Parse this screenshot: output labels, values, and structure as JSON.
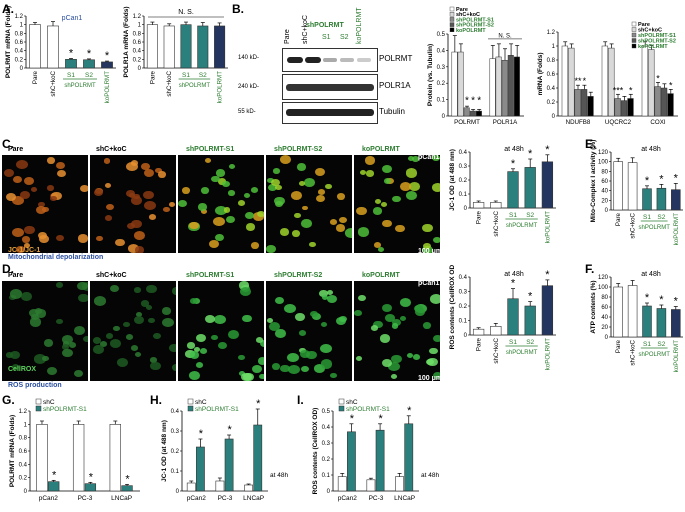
{
  "colors": {
    "white": "#ffffff",
    "teal": "#2b7f7c",
    "navy": "#24365f",
    "grey": "#8a8a8a",
    "black": "#000000",
    "green": "#2e7d32",
    "blue": "#2b4fa0",
    "lightgrey": "#d9d9d9"
  },
  "letters": {
    "A": "A.",
    "B": "B.",
    "C": "C.",
    "D": "D.",
    "E": "E.",
    "F": "F.",
    "G": "G.",
    "H": "H.",
    "I": "I."
  },
  "panelA": {
    "left": {
      "ylabel": "POLRMT mRNA (Folds)",
      "note": "pCan1",
      "yticks": [
        "0",
        "0.2",
        "0.4",
        "0.6",
        "0.8",
        "1",
        "1.2"
      ],
      "ylim": [
        0,
        1.2
      ],
      "categories": [
        "Pare",
        "shC+koC",
        "S1",
        "S2",
        "koPOLRMT"
      ],
      "values": [
        1.0,
        0.97,
        0.2,
        0.19,
        0.14
      ],
      "errors": [
        0.05,
        0.1,
        0.02,
        0.02,
        0.02
      ],
      "stars": [
        "",
        "",
        "*",
        "*",
        "*"
      ],
      "group": "shPOLRMT"
    },
    "right": {
      "ylabel": "POLR1A mRNA (Folds)",
      "note": "N. S.",
      "yticks": [
        "0",
        "0.2",
        "0.4",
        "0.6",
        "0.8",
        "1",
        "1.2"
      ],
      "ylim": [
        0,
        1.2
      ],
      "categories": [
        "Pare",
        "shC+koC",
        "S1",
        "S2",
        "koPOLRMT"
      ],
      "values": [
        1.0,
        0.97,
        1.0,
        0.97,
        0.97
      ],
      "errors": [
        0.06,
        0.05,
        0.06,
        0.08,
        0.07
      ],
      "group": "shPOLRMT"
    }
  },
  "panelB": {
    "lanes": [
      "Pare",
      "shC+koC",
      "S1",
      "S2",
      "koPOLRMT"
    ],
    "group": "shPOLRMT",
    "markers": [
      "140 kD-",
      "240 kD-",
      "55 kD-"
    ],
    "proteins": [
      "POLRMT",
      "POLR1A",
      "Tubulin"
    ],
    "protein_chart": {
      "ylabel": "Protein (vs. Tubulin)",
      "yticks": [
        "0",
        "0.1",
        "0.2",
        "0.3",
        "0.4",
        "0.5"
      ],
      "ylim": [
        0,
        0.5
      ],
      "categories": [
        "POLRMT",
        "POLR1A"
      ],
      "series": [
        {
          "name": "Pare",
          "values": [
            0.39,
            0.35
          ]
        },
        {
          "name": "shC+koC",
          "values": [
            0.39,
            0.36
          ]
        },
        {
          "name": "shPOLRMT-S1",
          "values": [
            0.05,
            0.34
          ]
        },
        {
          "name": "shPOLRMT-S2",
          "values": [
            0.03,
            0.37
          ]
        },
        {
          "name": "koPOLRMT",
          "values": [
            0.03,
            0.36
          ]
        }
      ],
      "errors": [
        [
          0.1,
          0.05,
          0.01,
          0.01,
          0.01
        ],
        [
          0.08,
          0.08,
          0.07,
          0.07,
          0.07
        ]
      ],
      "stars": [
        "*",
        "*",
        "*"
      ],
      "ns": "N. S."
    },
    "mrna_chart": {
      "ylabel": "mRNA (Folds)",
      "yticks": [
        "0",
        "0.2",
        "0.4",
        "0.6",
        "0.8",
        "1",
        "1.2"
      ],
      "ylim": [
        0,
        1.2
      ],
      "categories": [
        "NDUFB8",
        "UQCRC2",
        "COXI"
      ],
      "series": [
        {
          "name": "Pare",
          "values": [
            1.0,
            1.0,
            1.0
          ]
        },
        {
          "name": "shC+koC",
          "values": [
            0.97,
            0.97,
            0.95
          ]
        },
        {
          "name": "shPOLRMT-S1",
          "values": [
            0.38,
            0.25,
            0.42
          ]
        },
        {
          "name": "shPOLRMT-S2",
          "values": [
            0.38,
            0.22,
            0.4
          ]
        },
        {
          "name": "koPOLRMT",
          "values": [
            0.28,
            0.25,
            0.32
          ]
        }
      ],
      "stars": [
        "**",
        "*",
        "***",
        "*",
        "*",
        "*"
      ]
    }
  },
  "panelC": {
    "labels": [
      "Pare",
      "shC+koC",
      "shPOLRMT-S1",
      "shPOLRMT-S2",
      "koPOLRMT"
    ],
    "note": "pCan1",
    "stain": "JC-1",
    "stain_b": "JC-1",
    "scale": "100 μm",
    "caption": "Mitochondrial depolarization",
    "chart": {
      "ylabel": "JC-1 OD (at 488 nm)",
      "note": "at 48h",
      "yticks": [
        "0",
        "0.1",
        "0.2",
        "0.3",
        "0.4"
      ],
      "ylim": [
        0,
        0.4
      ],
      "categories": [
        "Pare",
        "shC+koC",
        "S1",
        "S2",
        "koPOLRMT"
      ],
      "values": [
        0.04,
        0.04,
        0.26,
        0.29,
        0.33
      ],
      "errors": [
        0.01,
        0.01,
        0.02,
        0.06,
        0.05
      ],
      "stars": [
        "",
        "",
        "*",
        "*",
        "*"
      ],
      "group": "shPOLRMT"
    }
  },
  "panelD": {
    "labels": [
      "Pare",
      "shC+koC",
      "shPOLRMT-S1",
      "shPOLRMT-S2",
      "koPOLRMT"
    ],
    "note": "pCan1",
    "stain": "CellROX",
    "scale": "100 μm",
    "caption": "ROS production",
    "chart": {
      "ylabel": "ROS contents (CellROX OD)",
      "note": "at 48h",
      "yticks": [
        "0",
        "0.1",
        "0.2",
        "0.3",
        "0.4"
      ],
      "ylim": [
        0,
        0.4
      ],
      "categories": [
        "Pare",
        "shC+koC",
        "S1",
        "S2",
        "koPOLRMT"
      ],
      "values": [
        0.04,
        0.06,
        0.25,
        0.2,
        0.34
      ],
      "errors": [
        0.01,
        0.02,
        0.07,
        0.03,
        0.04
      ],
      "stars": [
        "",
        "",
        "*",
        "*",
        "*"
      ],
      "group": "shPOLRMT"
    }
  },
  "panelE": {
    "ylabel": "Mito-Complex I activity (%)",
    "note": "at 48h",
    "yticks": [
      "0",
      "20",
      "40",
      "60",
      "80",
      "100",
      "120"
    ],
    "ylim": [
      0,
      120
    ],
    "categories": [
      "Pare",
      "shC+koC",
      "S1",
      "S2",
      "koPOLRMT"
    ],
    "values": [
      100,
      98,
      44,
      45,
      42
    ],
    "errors": [
      7,
      10,
      6,
      8,
      13
    ],
    "stars": [
      "",
      "",
      "*",
      "*",
      "*"
    ],
    "group": "shPOLRMT"
  },
  "panelF": {
    "ylabel": "ATP contents (%)",
    "note": "at 48h",
    "yticks": [
      "0",
      "20",
      "40",
      "60",
      "80",
      "100",
      "120"
    ],
    "ylim": [
      0,
      120
    ],
    "categories": [
      "Pare",
      "shC+koC",
      "S1",
      "S2",
      "koPOLRMT"
    ],
    "values": [
      100,
      103,
      62,
      57,
      55
    ],
    "errors": [
      7,
      10,
      6,
      7,
      6
    ],
    "stars": [
      "",
      "",
      "*",
      "*",
      "*"
    ],
    "group": "shPOLRMT"
  },
  "panelG": {
    "ylabel": "POLRMT mRNA (Folds)",
    "yticks": [
      "0",
      "0.2",
      "0.4",
      "0.6",
      "0.8",
      "1",
      "1.2"
    ],
    "ylim": [
      0,
      1.2
    ],
    "categories": [
      "pCan2",
      "PC-3",
      "LNCaP"
    ],
    "series": [
      {
        "name": "shC",
        "values": [
          1.0,
          1.0,
          1.0
        ]
      },
      {
        "name": "shPOLRMT-S1",
        "values": [
          0.14,
          0.11,
          0.08
        ]
      }
    ],
    "errors": [
      [
        0.05,
        0.05,
        0.05
      ],
      [
        0.02,
        0.02,
        0.02
      ]
    ],
    "stars": [
      "*",
      "*",
      "*"
    ]
  },
  "panelH": {
    "ylabel": "JC-1 OD (at 488 nm)",
    "note": "at 48h",
    "yticks": [
      "0",
      "0.1",
      "0.2",
      "0.3",
      "0.4"
    ],
    "ylim": [
      0,
      0.4
    ],
    "categories": [
      "pCan2",
      "PC-3",
      "LNCaP"
    ],
    "series": [
      {
        "name": "shC",
        "values": [
          0.04,
          0.05,
          0.03
        ]
      },
      {
        "name": "shPOLRMT-S1",
        "values": [
          0.22,
          0.26,
          0.33
        ]
      }
    ],
    "errors": [
      [
        0.01,
        0.015,
        0.005
      ],
      [
        0.04,
        0.02,
        0.08
      ]
    ],
    "stars": [
      "*",
      "*",
      "*"
    ]
  },
  "panelI": {
    "ylabel": "ROS contents (CellROX OD)",
    "note": "at 48h",
    "yticks": [
      "0",
      "0.1",
      "0.2",
      "0.3",
      "0.4",
      "0.5"
    ],
    "ylim": [
      0,
      0.5
    ],
    "categories": [
      "pCan2",
      "PC-3",
      "LNCaP"
    ],
    "series": [
      {
        "name": "shC",
        "values": [
          0.09,
          0.07,
          0.09
        ]
      },
      {
        "name": "shPOLRMT-S1",
        "values": [
          0.37,
          0.38,
          0.42
        ]
      }
    ],
    "errors": [
      [
        0.02,
        0.01,
        0.02
      ],
      [
        0.05,
        0.04,
        0.05
      ]
    ],
    "stars": [
      "*",
      "*",
      "*"
    ]
  },
  "chart_data": [
    {
      "type": "bar",
      "title": "",
      "categories": [
        "Pare",
        "shC+koC",
        "shPOLRMT-S1",
        "shPOLRMT-S2",
        "koPOLRMT"
      ],
      "values": [
        1.0,
        0.97,
        0.2,
        0.19,
        0.14
      ],
      "ylabel": "POLRMT mRNA (Folds)",
      "ylim": [
        0,
        1.2
      ]
    },
    {
      "type": "bar",
      "title": "",
      "categories": [
        "Pare",
        "shC+koC",
        "shPOLRMT-S1",
        "shPOLRMT-S2",
        "koPOLRMT"
      ],
      "values": [
        1.0,
        0.97,
        1.0,
        0.97,
        0.97
      ],
      "ylabel": "POLR1A mRNA (Folds)",
      "ylim": [
        0,
        1.2
      ]
    },
    {
      "type": "bar",
      "title": "",
      "categories": [
        "POLRMT",
        "POLR1A"
      ],
      "series": [
        {
          "name": "Pare",
          "values": [
            0.39,
            0.35
          ]
        },
        {
          "name": "shC+koC",
          "values": [
            0.39,
            0.36
          ]
        },
        {
          "name": "shPOLRMT-S1",
          "values": [
            0.05,
            0.34
          ]
        },
        {
          "name": "shPOLRMT-S2",
          "values": [
            0.03,
            0.37
          ]
        },
        {
          "name": "koPOLRMT",
          "values": [
            0.03,
            0.36
          ]
        }
      ],
      "ylabel": "Protein (vs. Tubulin)",
      "ylim": [
        0,
        0.5
      ]
    },
    {
      "type": "bar",
      "title": "",
      "categories": [
        "NDUFB8",
        "UQCRC2",
        "COXI"
      ],
      "series": [
        {
          "name": "Pare",
          "values": [
            1.0,
            1.0,
            1.0
          ]
        },
        {
          "name": "shC+koC",
          "values": [
            0.97,
            0.97,
            0.95
          ]
        },
        {
          "name": "shPOLRMT-S1",
          "values": [
            0.38,
            0.25,
            0.42
          ]
        },
        {
          "name": "shPOLRMT-S2",
          "values": [
            0.38,
            0.22,
            0.4
          ]
        },
        {
          "name": "koPOLRMT",
          "values": [
            0.28,
            0.25,
            0.32
          ]
        }
      ],
      "ylabel": "mRNA (Folds)",
      "ylim": [
        0,
        1.2
      ]
    },
    {
      "type": "bar",
      "title": "",
      "categories": [
        "Pare",
        "shC+koC",
        "shPOLRMT-S1",
        "shPOLRMT-S2",
        "koPOLRMT"
      ],
      "values": [
        0.04,
        0.04,
        0.26,
        0.29,
        0.33
      ],
      "ylabel": "JC-1 OD (at 488 nm)",
      "ylim": [
        0,
        0.4
      ]
    },
    {
      "type": "bar",
      "title": "",
      "categories": [
        "Pare",
        "shC+koC",
        "shPOLRMT-S1",
        "shPOLRMT-S2",
        "koPOLRMT"
      ],
      "values": [
        100,
        98,
        44,
        45,
        42
      ],
      "ylabel": "Mito-Complex I activity (%)",
      "ylim": [
        0,
        120
      ]
    },
    {
      "type": "bar",
      "title": "",
      "categories": [
        "Pare",
        "shC+koC",
        "shPOLRMT-S1",
        "shPOLRMT-S2",
        "koPOLRMT"
      ],
      "values": [
        0.04,
        0.06,
        0.25,
        0.2,
        0.34
      ],
      "ylabel": "ROS contents (CellROX OD)",
      "ylim": [
        0,
        0.4
      ]
    },
    {
      "type": "bar",
      "title": "",
      "categories": [
        "Pare",
        "shC+koC",
        "shPOLRMT-S1",
        "shPOLRMT-S2",
        "koPOLRMT"
      ],
      "values": [
        100,
        103,
        62,
        57,
        55
      ],
      "ylabel": "ATP contents (%)",
      "ylim": [
        0,
        120
      ]
    },
    {
      "type": "bar",
      "title": "",
      "categories": [
        "pCan2",
        "PC-3",
        "LNCaP"
      ],
      "series": [
        {
          "name": "shC",
          "values": [
            1.0,
            1.0,
            1.0
          ]
        },
        {
          "name": "shPOLRMT-S1",
          "values": [
            0.14,
            0.11,
            0.08
          ]
        }
      ],
      "ylabel": "POLRMT mRNA (Folds)",
      "ylim": [
        0,
        1.2
      ]
    },
    {
      "type": "bar",
      "title": "",
      "categories": [
        "pCan2",
        "PC-3",
        "LNCaP"
      ],
      "series": [
        {
          "name": "shC",
          "values": [
            0.04,
            0.05,
            0.03
          ]
        },
        {
          "name": "shPOLRMT-S1",
          "values": [
            0.22,
            0.26,
            0.33
          ]
        }
      ],
      "ylabel": "JC-1 OD (at 488 nm)",
      "ylim": [
        0,
        0.4
      ]
    },
    {
      "type": "bar",
      "title": "",
      "categories": [
        "pCan2",
        "PC-3",
        "LNCaP"
      ],
      "series": [
        {
          "name": "shC",
          "values": [
            0.09,
            0.07,
            0.09
          ]
        },
        {
          "name": "shPOLRMT-S1",
          "values": [
            0.37,
            0.38,
            0.42
          ]
        }
      ],
      "ylabel": "ROS contents (CellROX OD)",
      "ylim": [
        0,
        0.5
      ]
    }
  ]
}
